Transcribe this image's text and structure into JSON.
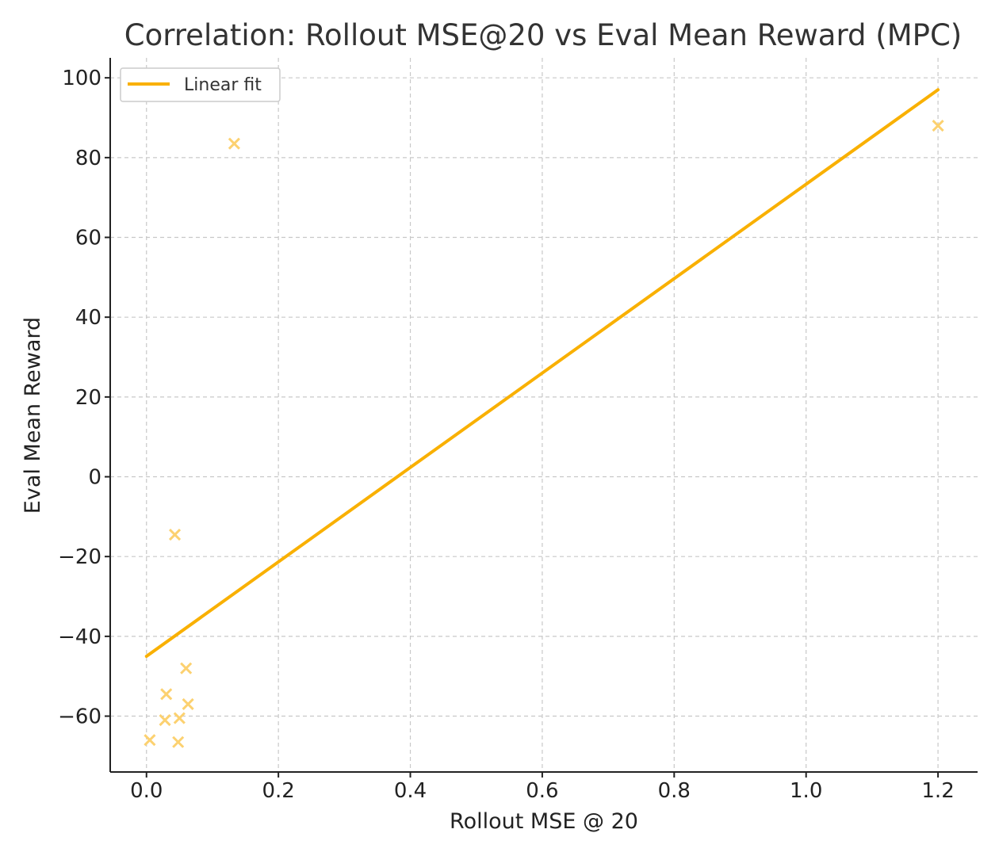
{
  "chart_data": {
    "type": "scatter",
    "title": "Correlation: Rollout MSE@20 vs Eval Mean Reward (MPC)",
    "xlabel": "Rollout MSE @ 20",
    "ylabel": "Eval Mean Reward",
    "xlim": [
      -0.055,
      1.26
    ],
    "ylim": [
      -74,
      105
    ],
    "xticks": [
      0.0,
      0.2,
      0.4,
      0.6,
      0.8,
      1.0,
      1.2
    ],
    "xtick_labels": [
      "0.0",
      "0.2",
      "0.4",
      "0.6",
      "0.8",
      "1.0",
      "1.2"
    ],
    "yticks": [
      100,
      80,
      60,
      40,
      20,
      0,
      -20,
      -40,
      -60
    ],
    "ytick_labels": [
      "100",
      "80",
      "60",
      "40",
      "20",
      "0",
      "−20",
      "−40",
      "−60"
    ],
    "grid": true,
    "legend": {
      "position": "top-left",
      "entries": [
        "Linear fit"
      ]
    },
    "series": [
      {
        "kind": "scatter",
        "marker": "x",
        "color": "#fcd170",
        "x": [
          0.005,
          0.028,
          0.03,
          0.043,
          0.048,
          0.05,
          0.06,
          0.063,
          0.133,
          1.2
        ],
        "y": [
          -66,
          -61,
          -54.5,
          -14.5,
          -66.5,
          -60.5,
          -48,
          -57,
          83.5,
          88
        ]
      },
      {
        "name": "Linear fit",
        "kind": "line",
        "color": "#f9b000",
        "x": [
          0.0,
          1.2
        ],
        "y": [
          -45,
          97
        ]
      }
    ]
  }
}
